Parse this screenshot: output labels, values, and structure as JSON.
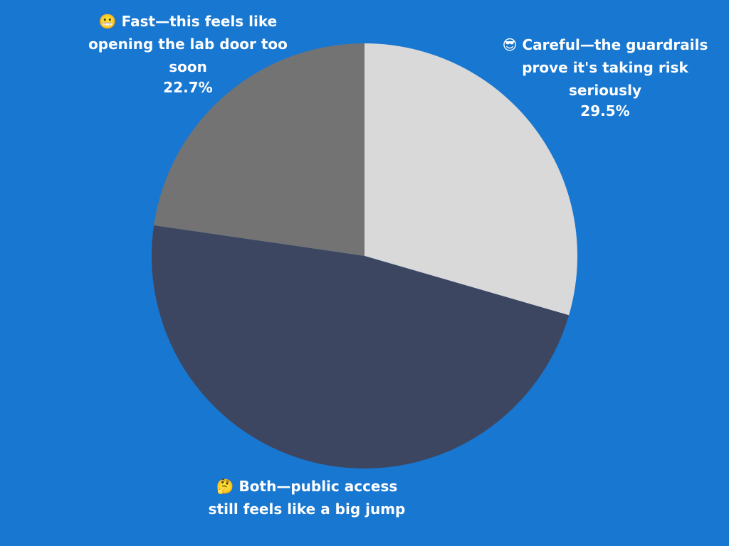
{
  "chart_data": {
    "type": "pie",
    "categories": [
      "😎 Careful—the guardrails prove it's taking risk seriously",
      "🤔 Both—public access still feels like a big jump",
      "😬 Fast—this feels like opening the lab door too soon"
    ],
    "values": [
      29.5,
      47.8,
      22.7
    ],
    "value_labels": [
      "29.5%",
      null,
      "22.7%"
    ],
    "colors": [
      "#d9d9d9",
      "#3d4660",
      "#737373"
    ]
  }
}
